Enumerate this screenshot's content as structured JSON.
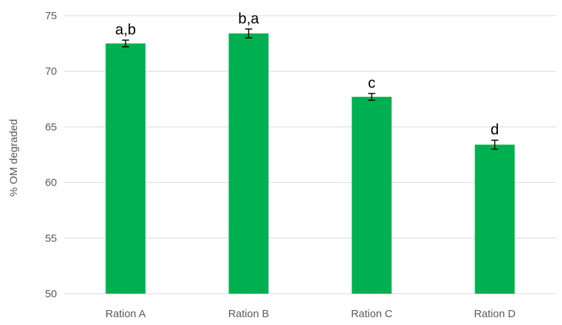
{
  "chart_data": {
    "type": "bar",
    "title": "",
    "xlabel": "",
    "ylabel": "% OM degraded",
    "ylim": [
      50,
      75
    ],
    "yticks": [
      50,
      55,
      60,
      65,
      70,
      75
    ],
    "grid": true,
    "bar_color": "#00b050",
    "categories": [
      "Ration A",
      "Ration B",
      "Ration C",
      "Ration D"
    ],
    "values": [
      72.5,
      73.4,
      67.7,
      63.4
    ],
    "errors": [
      0.3,
      0.4,
      0.3,
      0.4
    ],
    "significance_labels": [
      "a,b",
      "b,a",
      "c",
      "d"
    ]
  }
}
